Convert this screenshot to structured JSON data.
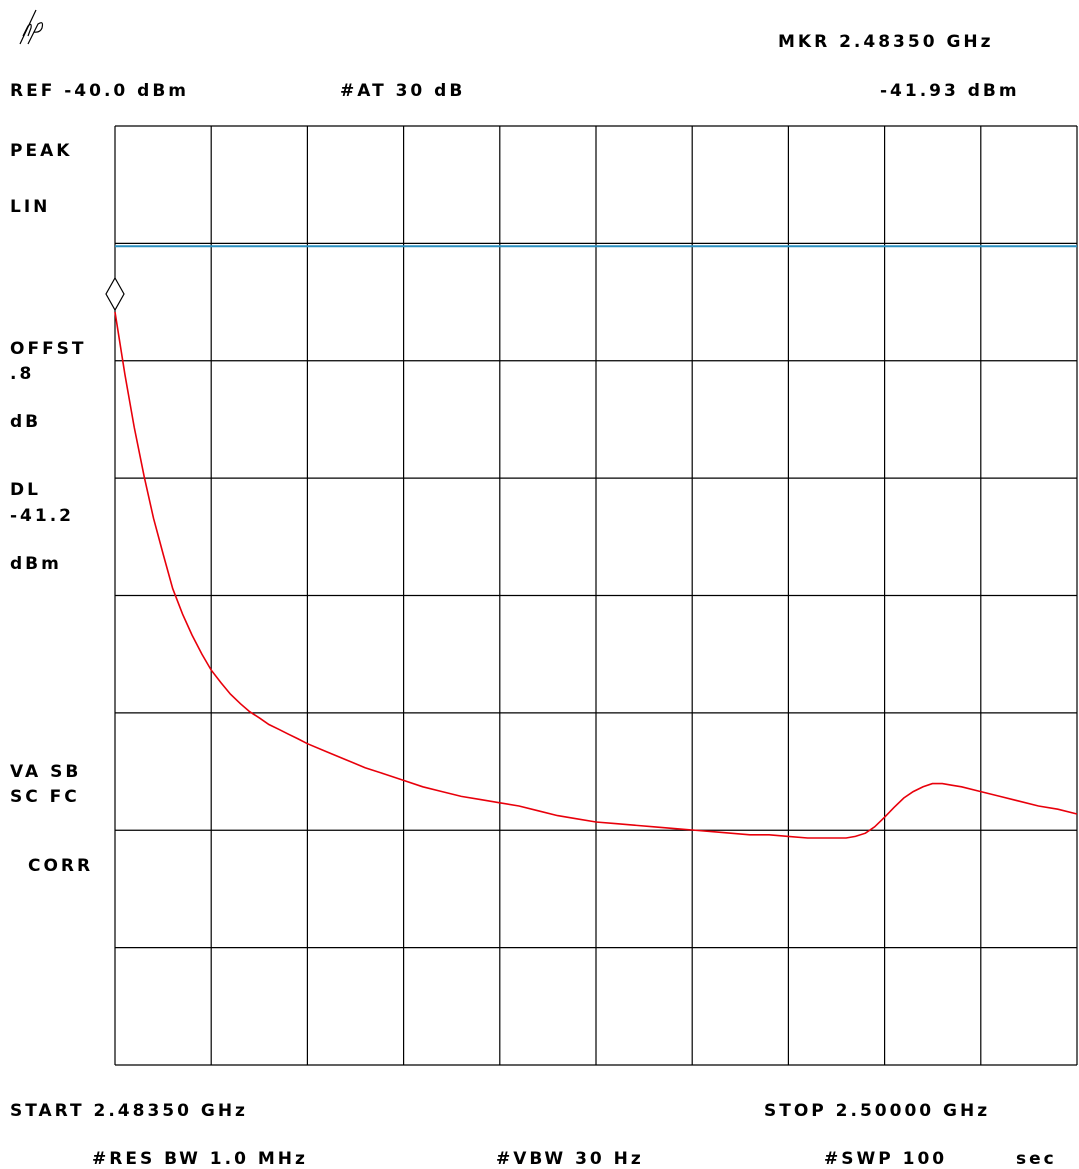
{
  "header": {
    "logo": "hp",
    "marker_label": "MKR 2.48350 GHz",
    "reference": "REF -40.0 dBm",
    "attenuation": "#AT 30 dB",
    "marker_value": "-41.93 dBm"
  },
  "side_panel": {
    "detector": "PEAK",
    "scale": "LIN",
    "offset_label": "OFFST",
    "offset_value": ".8",
    "offset_unit": "dB",
    "display_line_label": "DL",
    "display_line_value": "-41.2",
    "display_line_unit": "dBm",
    "coupling_1": "VA SB",
    "coupling_2": "SC FC",
    "correction": "CORR"
  },
  "footer": {
    "start": "START 2.48350 GHz",
    "stop": "STOP 2.50000 GHz",
    "res_bw": "#RES BW 1.0 MHz",
    "vbw": "#VBW 30 Hz",
    "sweep": "#SWP 100",
    "sweep_unit": "sec"
  },
  "colors": {
    "trace": "#e8000b",
    "display_line": "#2a8fbf",
    "grid": "#000000"
  },
  "chart_data": {
    "type": "line",
    "x_range": [
      2.4835,
      2.5
    ],
    "x_unit": "GHz",
    "y_range": [
      -40.0,
      -40.91
    ],
    "y_scale": "linear",
    "grid": true,
    "display_line_dbm": -41.2,
    "marker": {
      "x": 2.4835,
      "y": -41.93
    },
    "series": [
      {
        "x": [
          2.4835,
          2.48367,
          2.48383,
          2.484,
          2.48416,
          2.48433,
          2.48449,
          2.48466,
          2.48482,
          2.48499,
          2.48515,
          2.48532,
          2.48548,
          2.48565,
          2.48581,
          2.48598,
          2.48614,
          2.48631,
          2.48647,
          2.48664,
          2.4868,
          2.48713,
          2.48746,
          2.48779,
          2.48812,
          2.48845,
          2.48878,
          2.48911,
          2.48944,
          2.48977,
          2.4901,
          2.49043,
          2.49076,
          2.49109,
          2.49142,
          2.49175,
          2.49208,
          2.49241,
          2.49274,
          2.49307,
          2.4934,
          2.49373,
          2.49406,
          2.49439,
          2.49472,
          2.49505,
          2.49538,
          2.49571,
          2.49604,
          2.4962,
          2.49637,
          2.49653,
          2.4967,
          2.49686,
          2.49703,
          2.49719,
          2.49736,
          2.49752,
          2.49769,
          2.49785,
          2.49802,
          2.49835,
          2.49868,
          2.49901,
          2.49934,
          2.49967,
          2.5
        ],
        "y": [
          -41.93,
          -42.32,
          -42.65,
          -42.96,
          -43.22,
          -43.45,
          -43.66,
          -43.82,
          -43.95,
          -44.07,
          -44.17,
          -44.25,
          -44.32,
          -44.38,
          -44.43,
          -44.47,
          -44.51,
          -44.54,
          -44.57,
          -44.6,
          -44.63,
          -44.68,
          -44.73,
          -44.78,
          -44.82,
          -44.86,
          -44.9,
          -44.93,
          -44.96,
          -44.98,
          -45.0,
          -45.02,
          -45.05,
          -45.08,
          -45.1,
          -45.12,
          -45.13,
          -45.14,
          -45.15,
          -45.16,
          -45.17,
          -45.18,
          -45.19,
          -45.2,
          -45.2,
          -45.21,
          -45.22,
          -45.22,
          -45.22,
          -45.21,
          -45.19,
          -45.15,
          -45.09,
          -45.03,
          -44.97,
          -44.93,
          -44.9,
          -44.88,
          -44.88,
          -44.89,
          -44.9,
          -44.93,
          -44.96,
          -44.99,
          -45.02,
          -45.04,
          -45.07
        ]
      }
    ]
  }
}
